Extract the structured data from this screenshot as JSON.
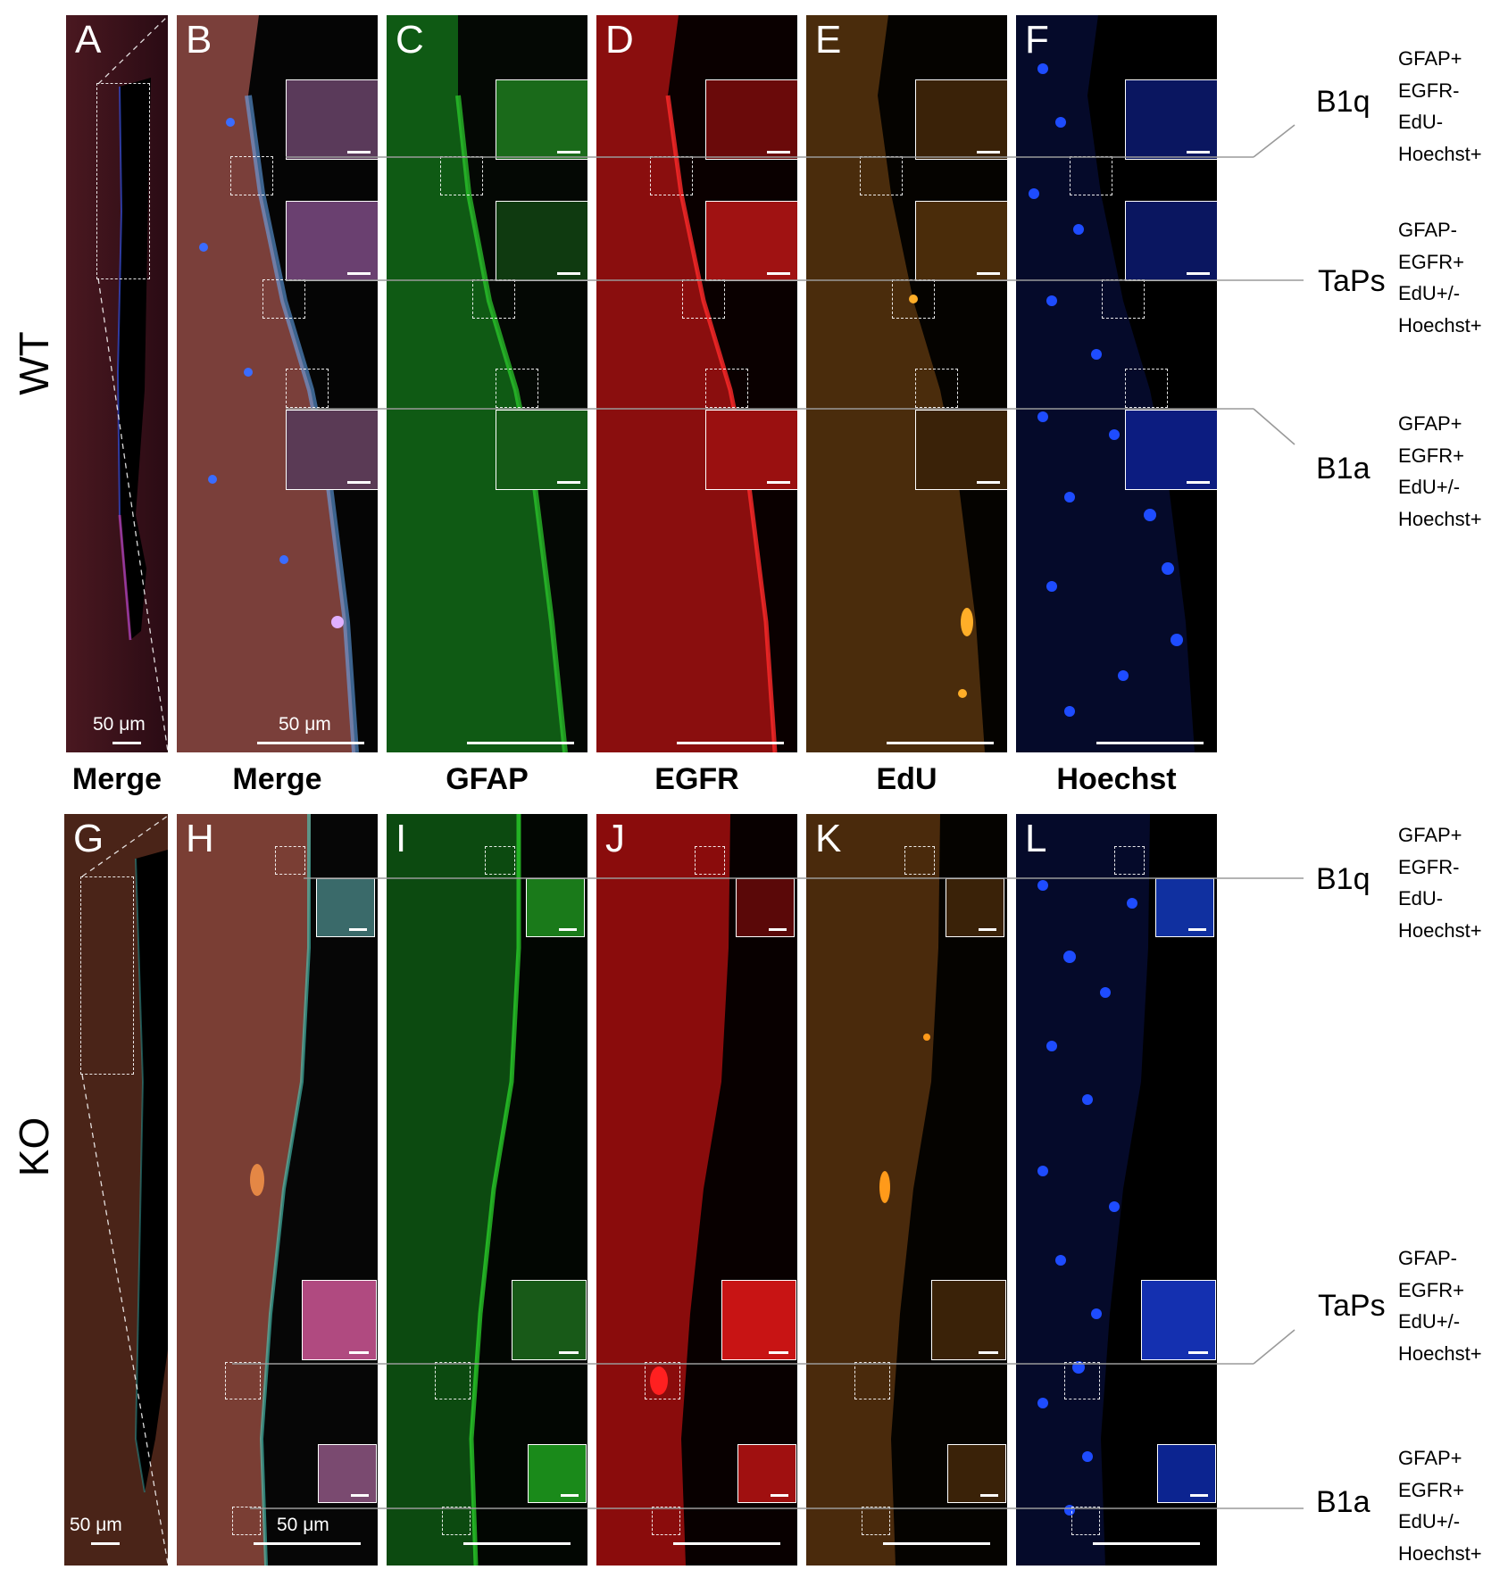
{
  "rows": [
    {
      "label": "WT",
      "panels": [
        "A",
        "B",
        "C",
        "D",
        "E",
        "F"
      ],
      "cell_types": [
        {
          "name": "B1q",
          "markers": [
            "GFAP+",
            "EGFR-",
            "EdU-",
            "Hoechst+"
          ]
        },
        {
          "name": "TaPs",
          "markers": [
            "GFAP-",
            "EGFR+",
            "EdU+/-",
            "Hoechst+"
          ]
        },
        {
          "name": "B1a",
          "markers": [
            "GFAP+",
            "EGFR+",
            "EdU+/-",
            "Hoechst+"
          ]
        }
      ]
    },
    {
      "label": "KO",
      "panels": [
        "G",
        "H",
        "I",
        "J",
        "K",
        "L"
      ],
      "cell_types": [
        {
          "name": "B1q",
          "markers": [
            "GFAP+",
            "EGFR-",
            "EdU-",
            "Hoechst+"
          ]
        },
        {
          "name": "TaPs",
          "markers": [
            "GFAP-",
            "EGFR+",
            "EdU+/-",
            "Hoechst+"
          ]
        },
        {
          "name": "B1a",
          "markers": [
            "GFAP+",
            "EGFR+",
            "EdU+/-",
            "Hoechst+"
          ]
        }
      ]
    }
  ],
  "column_labels": [
    "Merge",
    "Merge",
    "GFAP",
    "EGFR",
    "EdU",
    "Hoechst"
  ],
  "scale_labels": {
    "A": "50 μm",
    "B": "50 μm",
    "G": "50 μm",
    "H": "50 μm"
  },
  "channel_colors": {
    "merge": "#7a3a3a",
    "gfap": "#1f8f1f",
    "egfr": "#c81414",
    "edu": "#a06414",
    "hoechst": "#1a3cff",
    "background": "#000000"
  }
}
